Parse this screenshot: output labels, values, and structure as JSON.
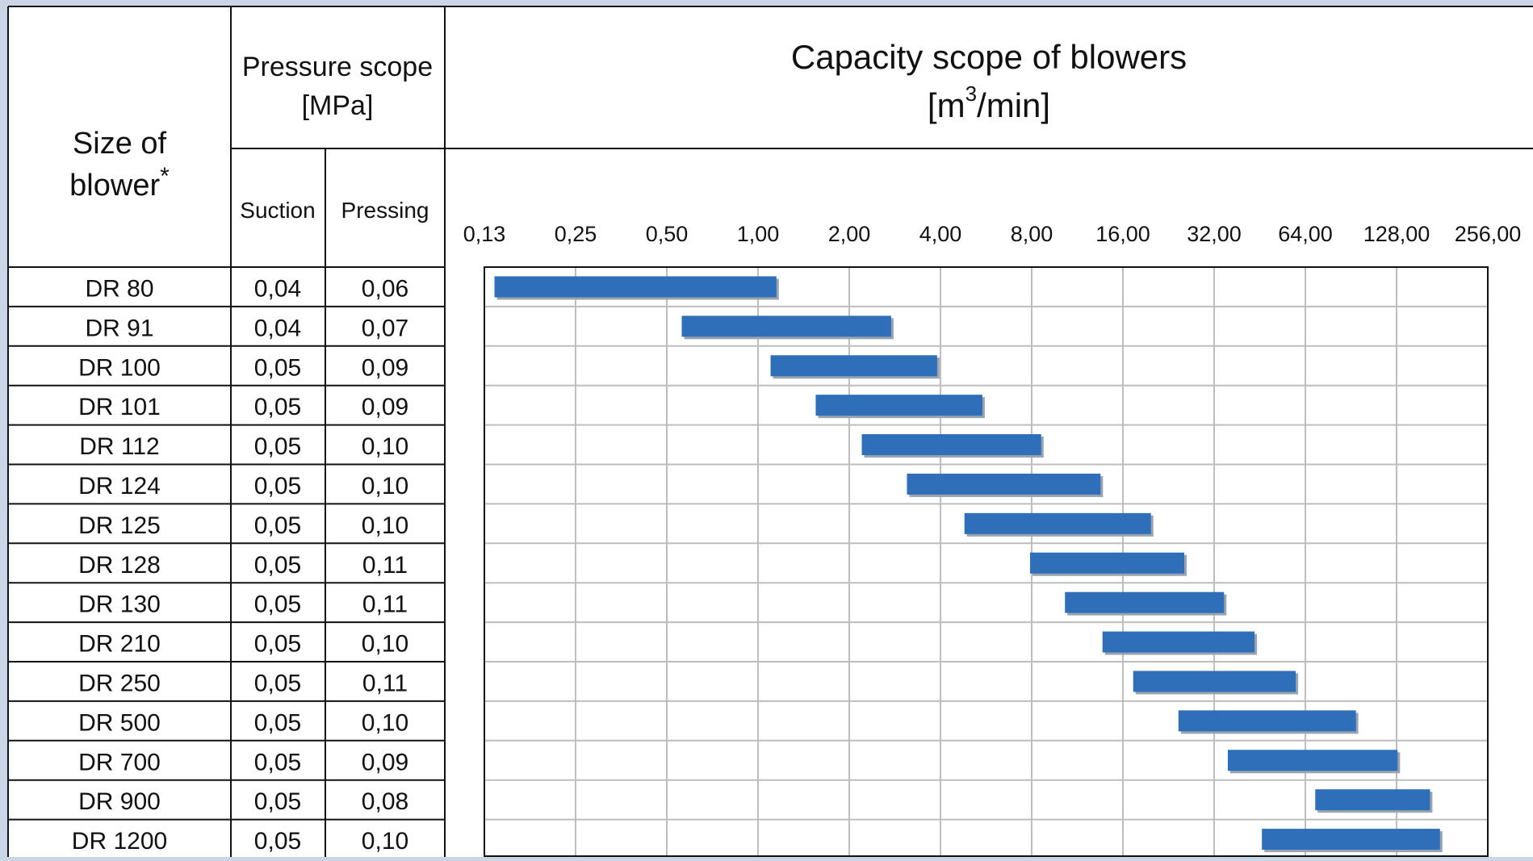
{
  "table": {
    "size_header_line1": "Size of",
    "size_header_line2": "blower",
    "size_header_asterisk": "*",
    "pressure_header_line1": "Pressure scope",
    "pressure_header_line2": "[MPa]",
    "suction_header": "Suction",
    "pressing_header": "Pressing",
    "rows": [
      {
        "size": "DR 80",
        "suction": "0,04",
        "pressing": "0,06"
      },
      {
        "size": "DR 91",
        "suction": "0,04",
        "pressing": "0,07"
      },
      {
        "size": "DR 100",
        "suction": "0,05",
        "pressing": "0,09"
      },
      {
        "size": "DR 101",
        "suction": "0,05",
        "pressing": "0,09"
      },
      {
        "size": "DR 112",
        "suction": "0,05",
        "pressing": "0,10"
      },
      {
        "size": "DR 124",
        "suction": "0,05",
        "pressing": "0,10"
      },
      {
        "size": "DR 125",
        "suction": "0,05",
        "pressing": "0,10"
      },
      {
        "size": "DR 128",
        "suction": "0,05",
        "pressing": "0,11"
      },
      {
        "size": "DR 130",
        "suction": "0,05",
        "pressing": "0,11"
      },
      {
        "size": "DR 210",
        "suction": "0,05",
        "pressing": "0,10"
      },
      {
        "size": "DR 250",
        "suction": "0,05",
        "pressing": "0,11"
      },
      {
        "size": "DR 500",
        "suction": "0,05",
        "pressing": "0,10"
      },
      {
        "size": "DR 700",
        "suction": "0,05",
        "pressing": "0,09"
      },
      {
        "size": "DR 900",
        "suction": "0,05",
        "pressing": "0,08"
      },
      {
        "size": "DR 1200",
        "suction": "0,05",
        "pressing": "0,10"
      }
    ]
  },
  "chart_data": {
    "type": "bar",
    "orientation": "horizontal-range",
    "title_line1": "Capacity scope of blowers",
    "unit_prefix": "[m",
    "unit_sup": "3",
    "unit_suffix": "/min]",
    "x_scale": "log2",
    "x_ticks": [
      0.125,
      0.25,
      0.5,
      1,
      2,
      4,
      8,
      16,
      32,
      64,
      128,
      256
    ],
    "x_tick_labels": [
      "0,13",
      "0,25",
      "0,50",
      "1,00",
      "2,00",
      "4,00",
      "8,00",
      "16,00",
      "32,00",
      "64,00",
      "128,00",
      "256,00"
    ],
    "xlim": [
      0.125,
      256
    ],
    "grid": true,
    "categories": [
      "DR 80",
      "DR 91",
      "DR 100",
      "DR 101",
      "DR 112",
      "DR 124",
      "DR 125",
      "DR 128",
      "DR 130",
      "DR 210",
      "DR 250",
      "DR 500",
      "DR 700",
      "DR 900",
      "DR 1200"
    ],
    "ranges": [
      [
        0.135,
        1.15
      ],
      [
        0.56,
        2.75
      ],
      [
        1.1,
        3.9
      ],
      [
        1.55,
        5.5
      ],
      [
        2.2,
        8.6
      ],
      [
        3.1,
        13.5
      ],
      [
        4.8,
        19.8
      ],
      [
        7.9,
        25.5
      ],
      [
        10.3,
        34.5
      ],
      [
        13.7,
        43.5
      ],
      [
        17.3,
        59.5
      ],
      [
        24.4,
        94
      ],
      [
        35.5,
        129
      ],
      [
        69,
        165
      ],
      [
        46,
        178
      ]
    ],
    "bar_color": "#2f6fba",
    "bar_shadow_color": "#9aa4b0",
    "grid_color": "#bdbdbd",
    "border_color": "#111111"
  }
}
